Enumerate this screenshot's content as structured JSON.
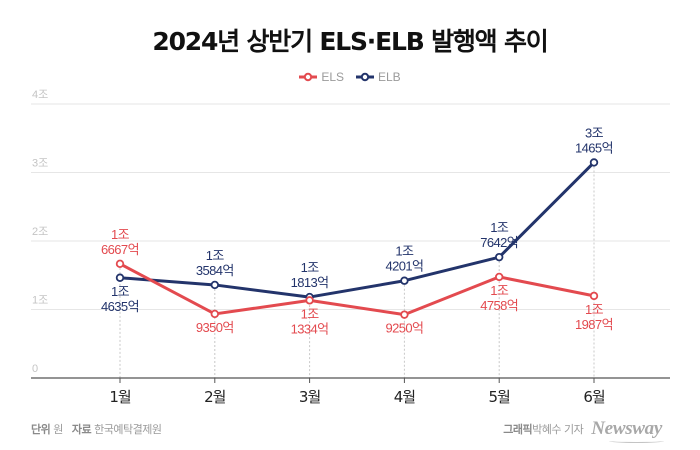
{
  "header": {
    "title": "2024년 상반기 ELS·ELB 발행액 추이"
  },
  "legend": [
    {
      "name": "ELS",
      "color": "#e34a4f"
    },
    {
      "name": "ELB",
      "color": "#23346b"
    }
  ],
  "footer": {
    "unit_label": "단위",
    "unit_value": "원",
    "source_label": "자료",
    "source_value": "한국예탁결제원",
    "graphic_label": "그래픽",
    "graphic_value": "박혜수 기자",
    "logo": "Newsway"
  },
  "chart_data": {
    "type": "line",
    "title": "2024년 상반기 ELS·ELB 발행액 추이",
    "xlabel": "",
    "ylabel": "",
    "unit": "원",
    "categories": [
      "1월",
      "2월",
      "3월",
      "4월",
      "5월",
      "6월"
    ],
    "ylim": [
      0,
      4
    ],
    "y_unit": "조",
    "y_ticks": [
      0,
      1,
      2,
      3,
      4
    ],
    "y_tick_labels": [
      "0",
      "1조",
      "2조",
      "3조",
      "4조"
    ],
    "grid": true,
    "legend_position": "top-center",
    "series": [
      {
        "name": "ELS",
        "color": "#e34a4f",
        "values": [
          1.6667,
          0.935,
          1.1334,
          0.925,
          1.4758,
          1.1987
        ],
        "labels": [
          [
            "1조",
            "6667억"
          ],
          [
            "9350억"
          ],
          [
            "1조",
            "1334억"
          ],
          [
            "9250억"
          ],
          [
            "1조",
            "4758억"
          ],
          [
            "1조",
            "1987억"
          ]
        ],
        "label_positions": [
          "above",
          "below",
          "below",
          "below",
          "below",
          "below"
        ]
      },
      {
        "name": "ELB",
        "color": "#23346b",
        "values": [
          1.4635,
          1.3584,
          1.1813,
          1.4201,
          1.7642,
          3.1465
        ],
        "labels": [
          [
            "1조",
            "4635억"
          ],
          [
            "1조",
            "3584억"
          ],
          [
            "1조",
            "1813억"
          ],
          [
            "1조",
            "4201억"
          ],
          [
            "1조",
            "7642억"
          ],
          [
            "3조",
            "1465억"
          ]
        ],
        "label_positions": [
          "below",
          "above",
          "above",
          "above",
          "above",
          "above"
        ]
      }
    ]
  }
}
